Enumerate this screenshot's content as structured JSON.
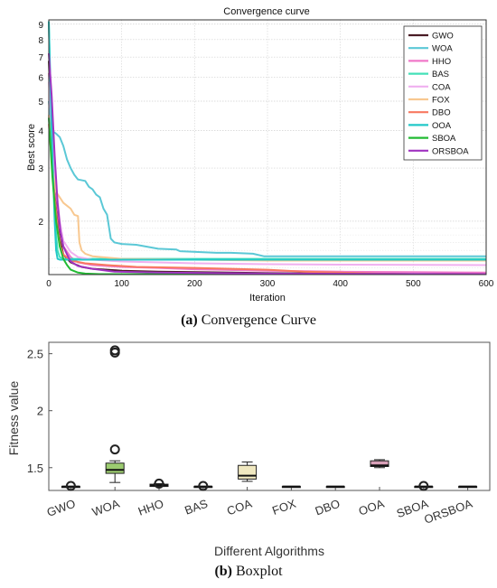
{
  "captions": {
    "a_label": "(a)",
    "a_text": "Convergence Curve",
    "b_label": "(b)",
    "b_text": "Boxplot"
  },
  "chart_data": [
    {
      "type": "line",
      "title": "Convergence curve",
      "xlabel": "Iteration",
      "ylabel": "Best score",
      "xlim": [
        0,
        600
      ],
      "ylim": [
        1.33,
        9.3
      ],
      "yscale": "log",
      "xticks": [
        0,
        100,
        200,
        300,
        400,
        500,
        600
      ],
      "yticks": [
        2,
        3,
        4,
        5,
        6,
        7,
        8,
        9
      ],
      "grid": true,
      "legend_position": "top-right",
      "series": [
        {
          "name": "GWO",
          "color": "#4a1c25",
          "points": [
            [
              0,
              6.8
            ],
            [
              3,
              4.5
            ],
            [
              6,
              3.2
            ],
            [
              10,
              2.2
            ],
            [
              15,
              1.75
            ],
            [
              20,
              1.55
            ],
            [
              30,
              1.46
            ],
            [
              45,
              1.41
            ],
            [
              60,
              1.39
            ],
            [
              80,
              1.38
            ],
            [
              100,
              1.37
            ],
            [
              150,
              1.36
            ],
            [
              200,
              1.355
            ],
            [
              250,
              1.35
            ],
            [
              300,
              1.345
            ],
            [
              400,
              1.34
            ],
            [
              500,
              1.335
            ],
            [
              600,
              1.335
            ]
          ]
        },
        {
          "name": "WOA",
          "color": "#5bc8d6",
          "points": [
            [
              0,
              5.0
            ],
            [
              4,
              4.0
            ],
            [
              10,
              3.9
            ],
            [
              15,
              3.8
            ],
            [
              20,
              3.55
            ],
            [
              25,
              3.2
            ],
            [
              30,
              3.0
            ],
            [
              35,
              2.85
            ],
            [
              40,
              2.75
            ],
            [
              50,
              2.72
            ],
            [
              55,
              2.6
            ],
            [
              60,
              2.55
            ],
            [
              65,
              2.45
            ],
            [
              70,
              2.4
            ],
            [
              75,
              2.2
            ],
            [
              80,
              2.1
            ],
            [
              85,
              1.75
            ],
            [
              90,
              1.7
            ],
            [
              100,
              1.68
            ],
            [
              120,
              1.67
            ],
            [
              150,
              1.62
            ],
            [
              175,
              1.61
            ],
            [
              180,
              1.59
            ],
            [
              230,
              1.57
            ],
            [
              250,
              1.57
            ],
            [
              280,
              1.56
            ],
            [
              295,
              1.53
            ],
            [
              400,
              1.53
            ],
            [
              600,
              1.53
            ]
          ]
        },
        {
          "name": "HHO",
          "color": "#f078c8",
          "points": [
            [
              0,
              6.2
            ],
            [
              5,
              3.5
            ],
            [
              10,
              2.5
            ],
            [
              15,
              1.9
            ],
            [
              20,
              1.65
            ],
            [
              30,
              1.52
            ],
            [
              40,
              1.46
            ],
            [
              60,
              1.43
            ],
            [
              100,
              1.41
            ],
            [
              150,
              1.4
            ],
            [
              200,
              1.385
            ],
            [
              300,
              1.37
            ],
            [
              400,
              1.36
            ],
            [
              500,
              1.355
            ],
            [
              600,
              1.35
            ]
          ]
        },
        {
          "name": "BAS",
          "color": "#44e0b8",
          "points": [
            [
              0,
              9.2
            ],
            [
              2,
              5.5
            ],
            [
              4,
              3.8
            ],
            [
              6,
              2.9
            ],
            [
              8,
              2.2
            ],
            [
              10,
              1.8
            ],
            [
              12,
              1.6
            ],
            [
              15,
              1.52
            ],
            [
              20,
              1.5
            ],
            [
              600,
              1.5
            ]
          ]
        },
        {
          "name": "COA",
          "color": "#f0b0f0",
          "points": [
            [
              0,
              5.8
            ],
            [
              5,
              3.8
            ],
            [
              10,
              2.6
            ],
            [
              15,
              2.0
            ],
            [
              20,
              1.72
            ],
            [
              30,
              1.58
            ],
            [
              40,
              1.52
            ],
            [
              60,
              1.49
            ],
            [
              100,
              1.47
            ],
            [
              200,
              1.45
            ],
            [
              300,
              1.44
            ],
            [
              400,
              1.435
            ],
            [
              600,
              1.43
            ]
          ]
        },
        {
          "name": "FOX",
          "color": "#f8c890",
          "points": [
            [
              0,
              4.5
            ],
            [
              5,
              3.0
            ],
            [
              10,
              2.5
            ],
            [
              15,
              2.4
            ],
            [
              20,
              2.3
            ],
            [
              25,
              2.25
            ],
            [
              30,
              2.2
            ],
            [
              35,
              2.1
            ],
            [
              40,
              2.08
            ],
            [
              42,
              1.7
            ],
            [
              45,
              1.6
            ],
            [
              50,
              1.56
            ],
            [
              60,
              1.53
            ],
            [
              100,
              1.5
            ],
            [
              200,
              1.49
            ],
            [
              300,
              1.48
            ],
            [
              600,
              1.48
            ]
          ]
        },
        {
          "name": "DBO",
          "color": "#f87860",
          "points": [
            [
              0,
              4.2
            ],
            [
              4,
              3.2
            ],
            [
              8,
              2.4
            ],
            [
              12,
              1.9
            ],
            [
              16,
              1.65
            ],
            [
              20,
              1.55
            ],
            [
              30,
              1.48
            ],
            [
              50,
              1.45
            ],
            [
              80,
              1.43
            ],
            [
              120,
              1.41
            ],
            [
              200,
              1.4
            ],
            [
              250,
              1.39
            ],
            [
              300,
              1.38
            ],
            [
              350,
              1.36
            ],
            [
              400,
              1.35
            ],
            [
              450,
              1.34
            ],
            [
              500,
              1.335
            ],
            [
              600,
              1.335
            ]
          ]
        },
        {
          "name": "OOA",
          "color": "#22c8c8",
          "points": [
            [
              0,
              9.2
            ],
            [
              2,
              6.0
            ],
            [
              4,
              4.0
            ],
            [
              6,
              2.8
            ],
            [
              8,
              2.0
            ],
            [
              10,
              1.6
            ],
            [
              12,
              1.5
            ],
            [
              15,
              1.49
            ],
            [
              600,
              1.49
            ]
          ]
        },
        {
          "name": "SBOA",
          "color": "#22bb33",
          "points": [
            [
              0,
              4.4
            ],
            [
              5,
              2.8
            ],
            [
              10,
              2.0
            ],
            [
              15,
              1.65
            ],
            [
              20,
              1.5
            ],
            [
              25,
              1.43
            ],
            [
              30,
              1.38
            ],
            [
              40,
              1.35
            ],
            [
              50,
              1.34
            ],
            [
              70,
              1.335
            ],
            [
              600,
              1.335
            ]
          ]
        },
        {
          "name": "ORSBOA",
          "color": "#a033c0",
          "points": [
            [
              0,
              7.2
            ],
            [
              4,
              5.2
            ],
            [
              8,
              3.3
            ],
            [
              12,
              2.3
            ],
            [
              16,
              1.85
            ],
            [
              20,
              1.65
            ],
            [
              25,
              1.55
            ],
            [
              30,
              1.47
            ],
            [
              40,
              1.42
            ],
            [
              60,
              1.39
            ],
            [
              80,
              1.37
            ],
            [
              90,
              1.36
            ],
            [
              150,
              1.35
            ],
            [
              300,
              1.34
            ],
            [
              600,
              1.335
            ]
          ]
        }
      ]
    },
    {
      "type": "box",
      "xlabel": "Different Algorithms",
      "ylabel": "Fitness value",
      "ylim": [
        1.3,
        2.6
      ],
      "yticks": [
        1.5,
        2,
        2.5
      ],
      "categories": [
        "GWO",
        "WOA",
        "HHO",
        "BAS",
        "COA",
        "FOX",
        "DBO",
        "OOA",
        "SBOA",
        "ORSBOA"
      ],
      "boxes": [
        {
          "min": 1.335,
          "q1": 1.335,
          "median": 1.335,
          "q3": 1.335,
          "max": 1.335,
          "outliers": [
            1.34
          ]
        },
        {
          "min": 1.37,
          "q1": 1.45,
          "median": 1.48,
          "q3": 1.54,
          "max": 1.56,
          "outliers": [
            1.66,
            2.51,
            2.53
          ],
          "fill": "#9ccc70"
        },
        {
          "min": 1.335,
          "q1": 1.335,
          "median": 1.345,
          "q3": 1.355,
          "max": 1.36,
          "outliers": [
            1.36
          ]
        },
        {
          "min": 1.335,
          "q1": 1.335,
          "median": 1.335,
          "q3": 1.335,
          "max": 1.335,
          "outliers": [
            1.34
          ]
        },
        {
          "min": 1.38,
          "q1": 1.4,
          "median": 1.43,
          "q3": 1.52,
          "max": 1.55,
          "outliers": [],
          "fill": "#f0e8c0"
        },
        {
          "min": 1.335,
          "q1": 1.335,
          "median": 1.335,
          "q3": 1.335,
          "max": 1.335,
          "outliers": []
        },
        {
          "min": 1.335,
          "q1": 1.335,
          "median": 1.335,
          "q3": 1.335,
          "max": 1.335,
          "outliers": []
        },
        {
          "min": 1.5,
          "q1": 1.51,
          "median": 1.52,
          "q3": 1.56,
          "max": 1.57,
          "outliers": [],
          "fill": "#d8a0b8"
        },
        {
          "min": 1.335,
          "q1": 1.335,
          "median": 1.335,
          "q3": 1.335,
          "max": 1.335,
          "outliers": [
            1.34
          ]
        },
        {
          "min": 1.335,
          "q1": 1.335,
          "median": 1.335,
          "q3": 1.335,
          "max": 1.335,
          "outliers": []
        }
      ]
    }
  ]
}
